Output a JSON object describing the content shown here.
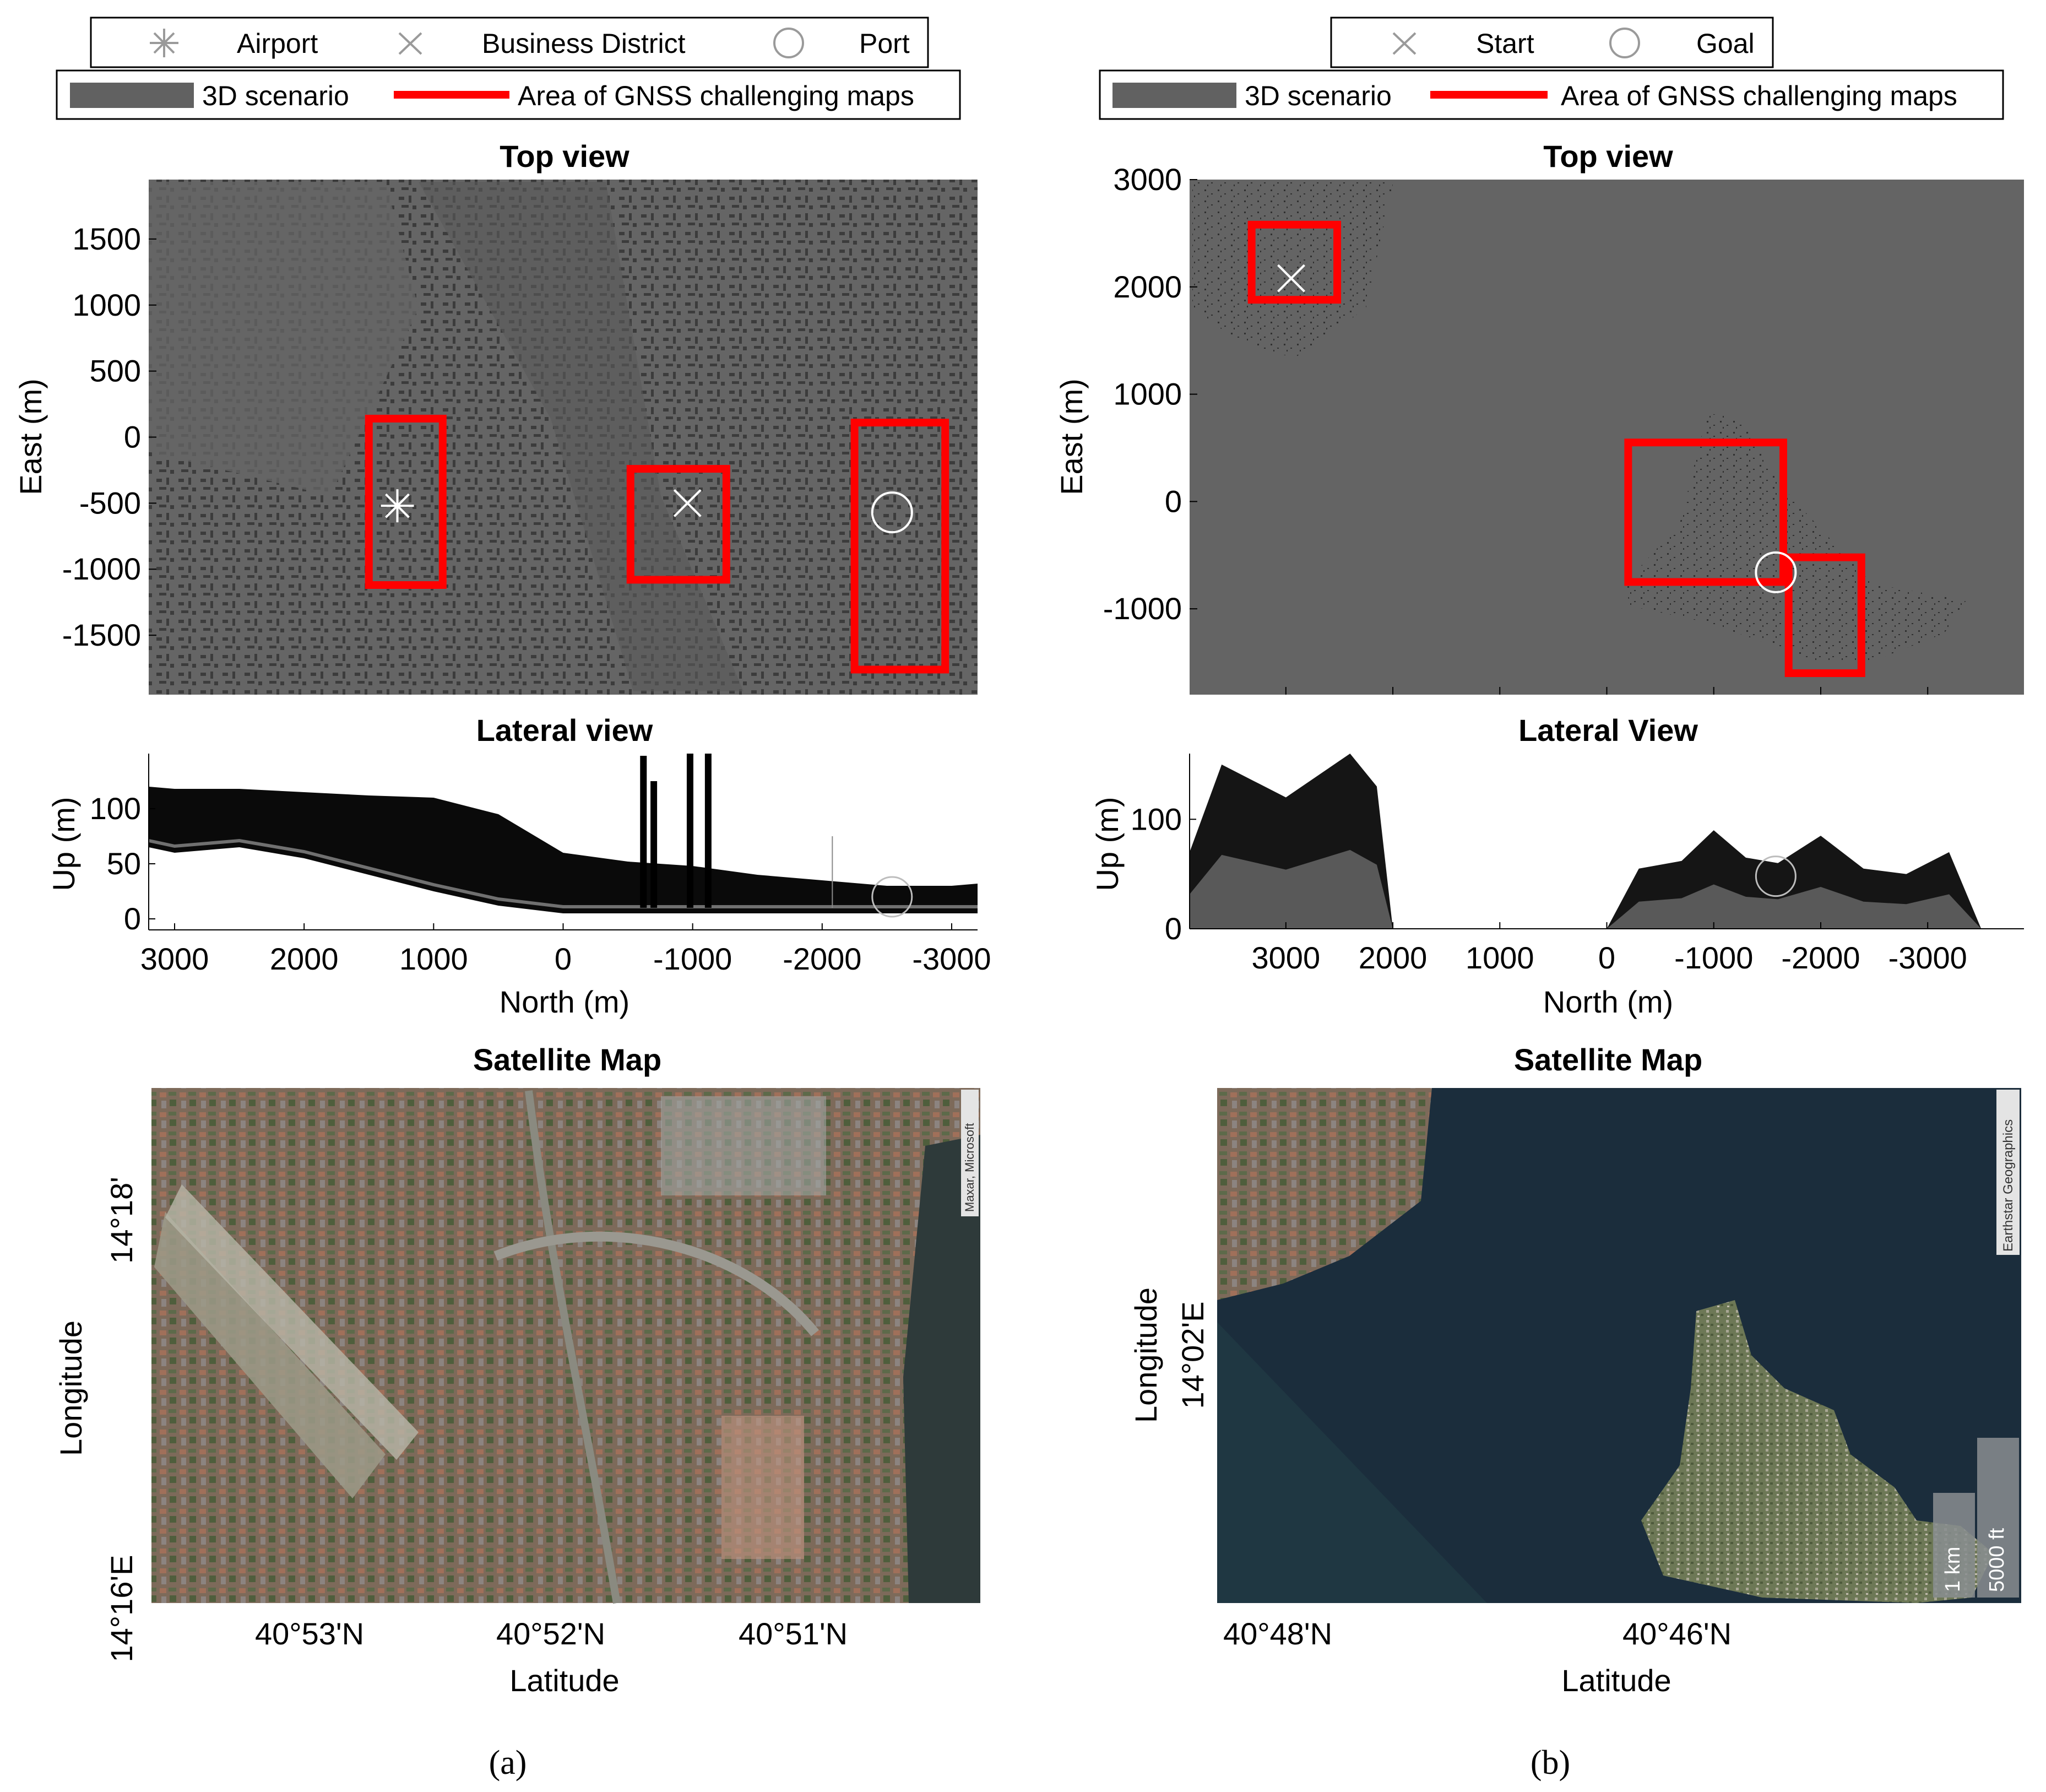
{
  "panels": [
    {
      "caption_label": "(a)",
      "legend_markers": [
        {
          "label": "Airport",
          "symbol": "asterisk"
        },
        {
          "label": "Business District",
          "symbol": "x"
        },
        {
          "label": "Port",
          "symbol": "circle"
        }
      ],
      "legend_areas": [
        {
          "label": "3D scenario",
          "color": "#616161"
        },
        {
          "label": "Area of GNSS challenging maps",
          "color": "#ff0000"
        }
      ],
      "top_view": {
        "title": "Top view",
        "ylabel": "East (m)",
        "yticks": [
          1500,
          1000,
          500,
          0,
          -500,
          -1000,
          -1500
        ],
        "ylim": [
          -1950,
          1950
        ],
        "xlim": [
          3200,
          -3200
        ]
      },
      "lateral_view": {
        "title": "Lateral view",
        "ylabel": "Up (m)",
        "xlabel": "North (m)",
        "yticks": [
          0,
          50,
          100
        ],
        "ylim": [
          -10,
          150
        ],
        "xticks": [
          3000,
          2000,
          1000,
          0,
          -1000,
          -2000,
          -3000
        ],
        "xlim": [
          3200,
          -3200
        ]
      },
      "satellite_map": {
        "title": "Satellite Map",
        "xlabel": "Latitude",
        "ylabel": "Longitude",
        "xticks": [
          "40°53'N",
          "40°52'N",
          "40°51'N"
        ],
        "yticks": [
          "14°18'",
          "14°16'E"
        ],
        "attribution": "Maxar, Microsoft"
      }
    },
    {
      "caption_label": "(b)",
      "legend_markers": [
        {
          "label": "Start",
          "symbol": "x"
        },
        {
          "label": "Goal",
          "symbol": "circle"
        }
      ],
      "legend_areas": [
        {
          "label": "3D scenario",
          "color": "#616161"
        },
        {
          "label": "Area of GNSS challenging maps",
          "color": "#ff0000"
        }
      ],
      "top_view": {
        "title": "Top view",
        "ylabel": "East (m)",
        "yticks": [
          3000,
          2000,
          1000,
          0,
          -1000
        ],
        "ylim": [
          -1800,
          3000
        ],
        "xlim": [
          3900,
          -3900
        ]
      },
      "lateral_view": {
        "title": "Lateral View",
        "ylabel": "Up (m)",
        "xlabel": "North (m)",
        "yticks": [
          0,
          100
        ],
        "ylim": [
          0,
          160
        ],
        "xticks": [
          3000,
          2000,
          1000,
          0,
          -1000,
          -2000,
          -3000
        ],
        "xlim": [
          3900,
          -3900
        ]
      },
      "satellite_map": {
        "title": "Satellite Map",
        "xlabel": "Latitude",
        "ylabel": "Longitude",
        "xticks": [
          "40°48'N",
          "40°46'N"
        ],
        "yticks": [
          "14°02'E"
        ],
        "attribution": "Earthstar Geographics",
        "scale_bar_metric": "1 km",
        "scale_bar_imperial": "5000 ft"
      }
    }
  ],
  "chart_data": [
    {
      "type": "area",
      "panel": "(a)",
      "title": "Top view",
      "ylabel": "East (m)",
      "ylim": [
        -1950,
        1950
      ],
      "xlim": [
        3200,
        -3200
      ],
      "challenging_areas": [
        {
          "north": [
            1500,
            930
          ],
          "east": [
            -1120,
            140
          ]
        },
        {
          "north": [
            -520,
            -1260
          ],
          "east": [
            -1080,
            -240
          ]
        },
        {
          "north": [
            -2250,
            -2950
          ],
          "east": [
            -1760,
            110
          ]
        }
      ],
      "markers": [
        {
          "name": "Airport",
          "north": 1280,
          "east": -520
        },
        {
          "name": "Business District",
          "north": -960,
          "east": -500
        },
        {
          "name": "Port",
          "north": -2540,
          "east": -570
        }
      ]
    },
    {
      "type": "area",
      "panel": "(a)",
      "title": "Lateral view",
      "xlabel": "North (m)",
      "ylabel": "Up (m)",
      "xlim": [
        3200,
        -3200
      ],
      "ylim": [
        -10,
        150
      ],
      "series": [
        {
          "x": [
            3200,
            3000,
            2500,
            2000,
            1500,
            1000,
            500,
            0,
            -500,
            -1000,
            -1500,
            -2000,
            -2500,
            -3000,
            -3200
          ],
          "y_top": [
            120,
            118,
            118,
            115,
            112,
            110,
            95,
            60,
            52,
            48,
            40,
            35,
            30,
            30,
            32
          ],
          "y_bottom": [
            65,
            60,
            65,
            55,
            40,
            25,
            12,
            5,
            5,
            5,
            5,
            5,
            5,
            5,
            5
          ]
        }
      ],
      "towers": [
        {
          "north": -620,
          "up": 148
        },
        {
          "north": -700,
          "up": 125
        },
        {
          "north": -980,
          "up": 150
        },
        {
          "north": -1120,
          "up": 150
        },
        {
          "north": -2100,
          "up": 75
        }
      ]
    },
    {
      "type": "area",
      "panel": "(b)",
      "title": "Top view",
      "ylabel": "East (m)",
      "ylim": [
        -1800,
        3000
      ],
      "xlim": [
        3900,
        -3900
      ],
      "challenging_areas": [
        {
          "north": [
            3320,
            2520
          ],
          "east": [
            1880,
            2580
          ]
        },
        {
          "north": [
            -200,
            -1650
          ],
          "east": [
            -750,
            550
          ]
        },
        {
          "north": [
            -1700,
            -2380
          ],
          "east": [
            -1600,
            -520
          ]
        }
      ],
      "markers": [
        {
          "name": "Start",
          "north": 2950,
          "east": 2080
        },
        {
          "name": "Goal",
          "north": -1580,
          "east": -660
        }
      ]
    },
    {
      "type": "area",
      "panel": "(b)",
      "title": "Lateral View",
      "xlabel": "North (m)",
      "ylabel": "Up (m)",
      "xlim": [
        3900,
        -3900
      ],
      "ylim": [
        0,
        160
      ],
      "series": [
        {
          "x": [
            3900,
            3600,
            3300,
            3000,
            2700,
            2400,
            2150,
            2000
          ],
          "y": [
            70,
            150,
            135,
            120,
            140,
            160,
            130,
            0
          ]
        },
        {
          "x": [
            0,
            -300,
            -700,
            -1000,
            -1300,
            -1600,
            -2000,
            -2400,
            -2800,
            -3200,
            -3500
          ],
          "y": [
            0,
            55,
            62,
            90,
            65,
            60,
            85,
            55,
            50,
            70,
            0
          ]
        }
      ]
    }
  ]
}
